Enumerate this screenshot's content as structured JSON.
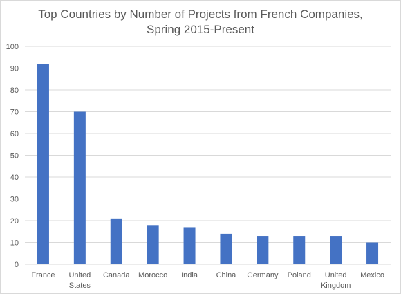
{
  "chart_data": {
    "type": "bar",
    "title_lines": [
      "Top Countries by Number of Projects from French Companies,",
      "Spring 2015-Present"
    ],
    "categories": [
      [
        "France"
      ],
      [
        "United",
        "States"
      ],
      [
        "Canada"
      ],
      [
        "Morocco"
      ],
      [
        "India"
      ],
      [
        "China"
      ],
      [
        "Germany"
      ],
      [
        "Poland"
      ],
      [
        "United",
        "Kingdom"
      ],
      [
        "Mexico"
      ]
    ],
    "values": [
      92,
      70,
      21,
      18,
      17,
      14,
      13,
      13,
      13,
      10
    ],
    "ylim": [
      0,
      100
    ],
    "yticks": [
      0,
      10,
      20,
      30,
      40,
      50,
      60,
      70,
      80,
      90,
      100
    ],
    "xlabel": "",
    "ylabel": "",
    "grid": true,
    "legend": "none",
    "colors": {
      "bar": "#4472c4",
      "gridline": "#d9d9d9",
      "text": "#595959"
    }
  }
}
